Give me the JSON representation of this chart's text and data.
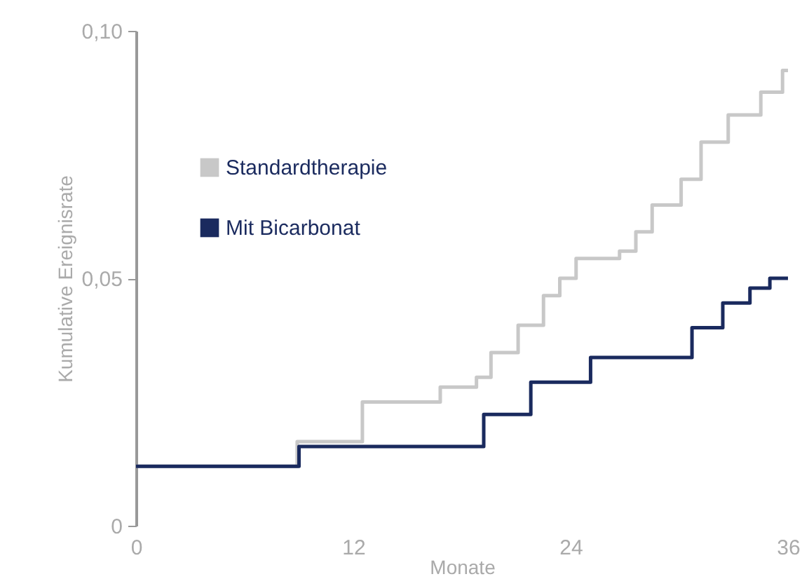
{
  "chart_data": {
    "type": "step",
    "xlabel": "Monate",
    "ylabel": "Kumulative Ereignisrate",
    "xlim": [
      0,
      36
    ],
    "xticks": [
      0,
      12,
      24,
      36
    ],
    "ylim": [
      0,
      0.1
    ],
    "yticks": [
      {
        "value": 0,
        "label": "0"
      },
      {
        "value": 0.05,
        "label": "0,05"
      },
      {
        "value": 0.1,
        "label": "0,10"
      }
    ],
    "grid": false,
    "legend": "top left",
    "marker": "none",
    "line_style": "solid",
    "series": [
      {
        "name": "Standardtherapie",
        "color": "#c8c8c8",
        "x": [
          0,
          8.9,
          12.5,
          16.8,
          18.8,
          19.6,
          21.1,
          22.5,
          23.4,
          24.3,
          26.7,
          27.6,
          28.5,
          30.1,
          31.2,
          32.7,
          34.5,
          35.7,
          36
        ],
        "values": [
          0.012,
          0.017,
          0.025,
          0.028,
          0.03,
          0.035,
          0.0405,
          0.0465,
          0.05,
          0.054,
          0.0555,
          0.0594,
          0.0648,
          0.07,
          0.0775,
          0.083,
          0.0876,
          0.092,
          0.092
        ]
      },
      {
        "name": "Mit Bicarbonat",
        "color": "#1a2a5e",
        "x": [
          0,
          9.0,
          19.2,
          21.8,
          25.1,
          30.7,
          32.4,
          33.9,
          35.0,
          36
        ],
        "values": [
          0.012,
          0.016,
          0.0225,
          0.029,
          0.034,
          0.04,
          0.045,
          0.048,
          0.05,
          0.05
        ]
      }
    ]
  }
}
